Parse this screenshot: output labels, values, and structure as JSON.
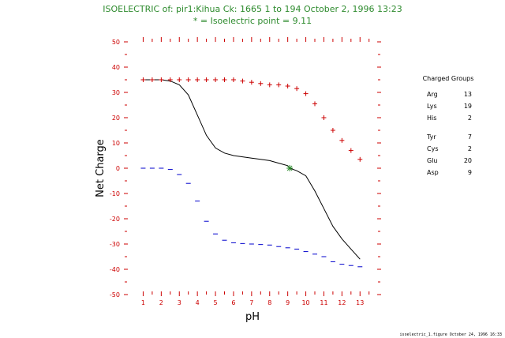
{
  "chart_data": {
    "type": "line",
    "title": "ISOELECTRIC of: pir1:Kihua  Ck: 1665  1 to 194  October 2, 1996 13:23",
    "subtitle": "* = Isoelectric point = 9.11",
    "xlabel": "pH",
    "ylabel": "Net Charge",
    "xlim": [
      0.5,
      13.6
    ],
    "ylim": [
      -50,
      50
    ],
    "x_ticks": [
      1,
      2,
      3,
      4,
      5,
      6,
      7,
      8,
      9,
      10,
      11,
      12,
      13
    ],
    "y_ticks": [
      50,
      40,
      30,
      20,
      10,
      0,
      -10,
      -20,
      -30,
      -40,
      -50
    ],
    "isoelectric_point": 9.11,
    "series": [
      {
        "key": "net",
        "color": "#000000",
        "x": [
          1.0,
          1.5,
          2.0,
          2.5,
          3.0,
          3.5,
          4.0,
          4.5,
          5.0,
          5.5,
          6.0,
          6.5,
          7.0,
          7.5,
          8.0,
          8.5,
          9.0,
          9.11,
          9.5,
          10.0,
          10.5,
          11.0,
          11.5,
          12.0,
          12.5,
          13.0
        ],
        "values": [
          35,
          35,
          35,
          34.5,
          33,
          29,
          21,
          13,
          8,
          6,
          5,
          4.5,
          4,
          3.5,
          3,
          2,
          1,
          0,
          -1,
          -3,
          -9,
          -16,
          -23,
          -28,
          -32,
          -36
        ]
      },
      {
        "key": "positive",
        "color": "#cc0000",
        "marker": "+",
        "x": [
          1.0,
          1.5,
          2.0,
          2.5,
          3.0,
          3.5,
          4.0,
          4.5,
          5.0,
          5.5,
          6.0,
          6.5,
          7.0,
          7.5,
          8.0,
          8.5,
          9.0,
          9.5,
          10.0,
          10.5,
          11.0,
          11.5,
          12.0,
          12.5,
          13.0
        ],
        "values": [
          35,
          35,
          35,
          35,
          35,
          35,
          35,
          35,
          35,
          35,
          35,
          34.5,
          34,
          33.5,
          33,
          33,
          32.5,
          31.5,
          29.5,
          25.5,
          20,
          15,
          11,
          7,
          3.5
        ]
      },
      {
        "key": "negative",
        "color": "#0000cc",
        "marker": "-",
        "x": [
          1.0,
          1.5,
          2.0,
          2.5,
          3.0,
          3.5,
          4.0,
          4.5,
          5.0,
          5.5,
          6.0,
          6.5,
          7.0,
          7.5,
          8.0,
          8.5,
          9.0,
          9.5,
          10.0,
          10.5,
          11.0,
          11.5,
          12.0,
          12.5,
          13.0
        ],
        "values": [
          0,
          0,
          0,
          -0.5,
          -2.5,
          -6,
          -13,
          -21,
          -26,
          -28.5,
          -29.5,
          -29.8,
          -30,
          -30.2,
          -30.4,
          -31,
          -31.5,
          -32,
          -33,
          -34,
          -35,
          -37,
          -38,
          -38.5,
          -39
        ]
      }
    ],
    "legend": {
      "title": "Charged Groups",
      "placement": "right",
      "groups": [
        [
          {
            "name": "Arg",
            "count": "13"
          },
          {
            "name": "Lys",
            "count": "19"
          },
          {
            "name": "His",
            "count": "2"
          }
        ],
        [
          {
            "name": "Tyr",
            "count": "7"
          },
          {
            "name": "Cys",
            "count": "2"
          },
          {
            "name": "Glu",
            "count": "20"
          },
          {
            "name": "Asp",
            "count": "9"
          }
        ]
      ]
    },
    "footer": "isoelectric_1.figure  October 24, 1996 16:33",
    "colors": {
      "title": "#2e8b2e",
      "ticks": "#cc0000",
      "star": "#2e8b2e"
    }
  }
}
